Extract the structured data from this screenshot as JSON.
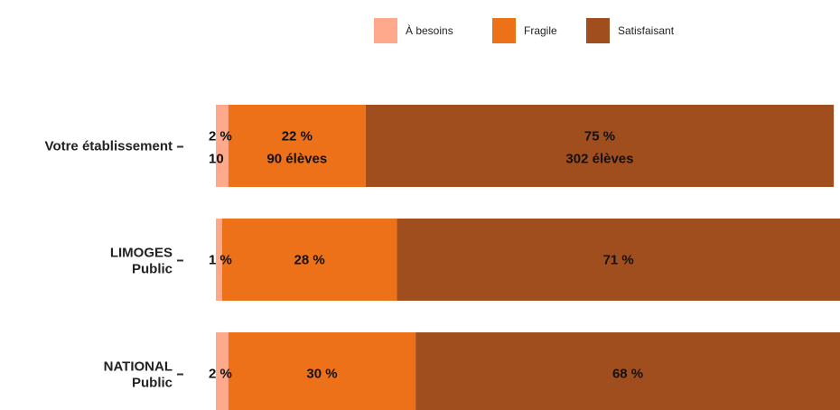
{
  "chart_data": {
    "type": "bar",
    "orientation": "horizontal",
    "stacked": true,
    "title": "",
    "xlabel": "",
    "ylabel": "",
    "xlim": [
      0,
      100
    ],
    "legend_position": "top",
    "categories": [
      {
        "label": [
          "Votre établissement"
        ]
      },
      {
        "label": [
          "LIMOGES",
          "Public"
        ]
      },
      {
        "label": [
          "NATIONAL",
          "Public"
        ]
      }
    ],
    "series": [
      {
        "name": "À besoins",
        "color": "#FFA98C",
        "values": [
          2,
          1,
          2
        ],
        "labels": [
          "2 %",
          "1 %",
          "2 %"
        ],
        "sublabels": [
          "10",
          null,
          null
        ]
      },
      {
        "name": "Fragile",
        "color": "#EC7118",
        "values": [
          22,
          28,
          30
        ],
        "labels": [
          "22 %",
          "28 %",
          "30 %"
        ],
        "sublabels": [
          "90 élèves",
          null,
          null
        ]
      },
      {
        "name": "Satisfaisant",
        "color": "#A14E1E",
        "values": [
          75,
          71,
          68
        ],
        "labels": [
          "75 %",
          "71 %",
          "68 %"
        ],
        "sublabels": [
          "302 élèves",
          null,
          null
        ]
      }
    ]
  }
}
